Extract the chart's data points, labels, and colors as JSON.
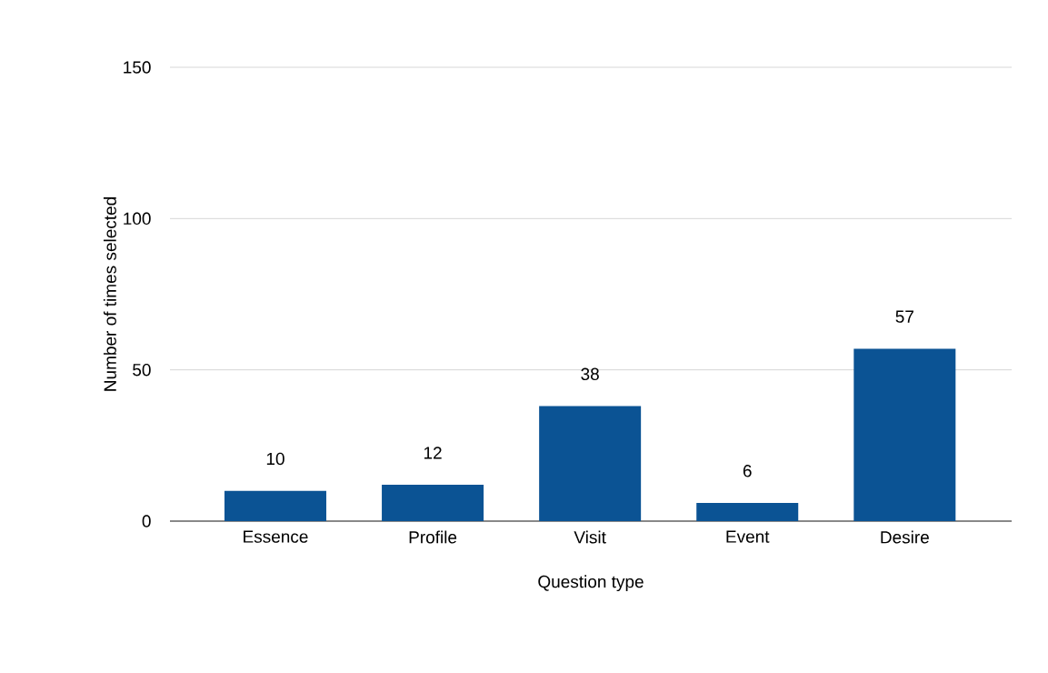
{
  "chart_data": {
    "type": "bar",
    "xlabel": "Question type",
    "ylabel": "Number of times selected",
    "categories": [
      "Essence",
      "Profile",
      "Visit",
      "Event",
      "Desire"
    ],
    "values": [
      10,
      12,
      38,
      6,
      57
    ],
    "color": "#0b5394",
    "ylim": [
      0,
      150
    ],
    "yticks": [
      0,
      50,
      100,
      150
    ],
    "grid": "y",
    "data_labels": true
  }
}
